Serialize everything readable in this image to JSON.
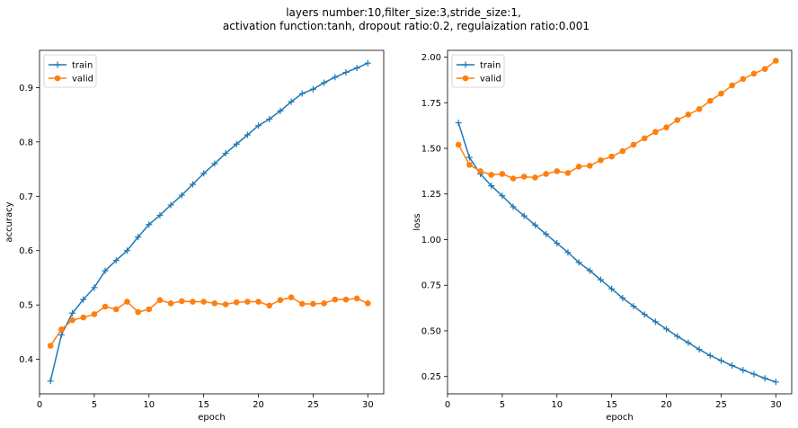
{
  "figure": {
    "title_line1": "layers number:10,filter_size:3,stride_size:1,",
    "title_line2": "activation function:tanh, dropout ratio:0.2, regulaization ratio:0.001"
  },
  "colors": {
    "train": "#1f77b4",
    "valid": "#ff7f0e"
  },
  "chart_data": [
    {
      "type": "line",
      "xlabel": "epoch",
      "ylabel": "accuracy",
      "xlim": [
        0,
        31.45
      ],
      "ylim": [
        0.3365,
        0.9685
      ],
      "xticks": [
        0,
        5,
        10,
        15,
        20,
        25,
        30
      ],
      "yticks": [
        0.4,
        0.5,
        0.6,
        0.7,
        0.8,
        0.9
      ],
      "ytick_labels": [
        "0.4",
        "0.5",
        "0.6",
        "0.7",
        "0.8",
        "0.9"
      ],
      "grid": false,
      "legend_position": "top-left",
      "x": [
        1,
        2,
        3,
        4,
        5,
        6,
        7,
        8,
        9,
        10,
        11,
        12,
        13,
        14,
        15,
        16,
        17,
        18,
        19,
        20,
        21,
        22,
        23,
        24,
        25,
        26,
        27,
        28,
        29,
        30
      ],
      "series": [
        {
          "name": "train",
          "marker": "plus",
          "values": [
            0.36,
            0.445,
            0.485,
            0.51,
            0.532,
            0.563,
            0.582,
            0.6,
            0.625,
            0.648,
            0.665,
            0.684,
            0.702,
            0.722,
            0.742,
            0.76,
            0.779,
            0.796,
            0.813,
            0.83,
            0.842,
            0.857,
            0.874,
            0.889,
            0.897,
            0.909,
            0.919,
            0.928,
            0.936,
            0.945
          ]
        },
        {
          "name": "valid",
          "marker": "circle",
          "values": [
            0.425,
            0.455,
            0.472,
            0.477,
            0.483,
            0.497,
            0.492,
            0.506,
            0.487,
            0.492,
            0.509,
            0.503,
            0.507,
            0.506,
            0.506,
            0.503,
            0.501,
            0.505,
            0.506,
            0.506,
            0.499,
            0.509,
            0.514,
            0.502,
            0.502,
            0.503,
            0.51,
            0.51,
            0.512,
            0.503
          ]
        }
      ]
    },
    {
      "type": "line",
      "xlabel": "epoch",
      "ylabel": "loss",
      "xlim": [
        0,
        31.45
      ],
      "ylim": [
        0.155,
        2.037
      ],
      "xticks": [
        0,
        5,
        10,
        15,
        20,
        25,
        30
      ],
      "yticks": [
        0.25,
        0.5,
        0.75,
        1.0,
        1.25,
        1.5,
        1.75,
        2.0
      ],
      "ytick_labels": [
        "0.25",
        "0.50",
        "0.75",
        "1.00",
        "1.25",
        "1.50",
        "1.75",
        "2.00"
      ],
      "grid": false,
      "legend_position": "top-left",
      "x": [
        1,
        2,
        3,
        4,
        5,
        6,
        7,
        8,
        9,
        10,
        11,
        12,
        13,
        14,
        15,
        16,
        17,
        18,
        19,
        20,
        21,
        22,
        23,
        24,
        25,
        26,
        27,
        28,
        29,
        30
      ],
      "series": [
        {
          "name": "train",
          "marker": "plus",
          "values": [
            1.64,
            1.45,
            1.36,
            1.295,
            1.24,
            1.18,
            1.13,
            1.08,
            1.03,
            0.98,
            0.93,
            0.875,
            0.83,
            0.78,
            0.73,
            0.68,
            0.635,
            0.59,
            0.55,
            0.51,
            0.47,
            0.435,
            0.398,
            0.365,
            0.337,
            0.31,
            0.285,
            0.263,
            0.24,
            0.22
          ]
        },
        {
          "name": "valid",
          "marker": "circle",
          "values": [
            1.52,
            1.41,
            1.375,
            1.355,
            1.36,
            1.335,
            1.345,
            1.34,
            1.36,
            1.375,
            1.365,
            1.4,
            1.405,
            1.435,
            1.455,
            1.485,
            1.52,
            1.555,
            1.59,
            1.615,
            1.655,
            1.685,
            1.715,
            1.76,
            1.8,
            1.845,
            1.88,
            1.91,
            1.935,
            1.98
          ]
        }
      ]
    }
  ]
}
